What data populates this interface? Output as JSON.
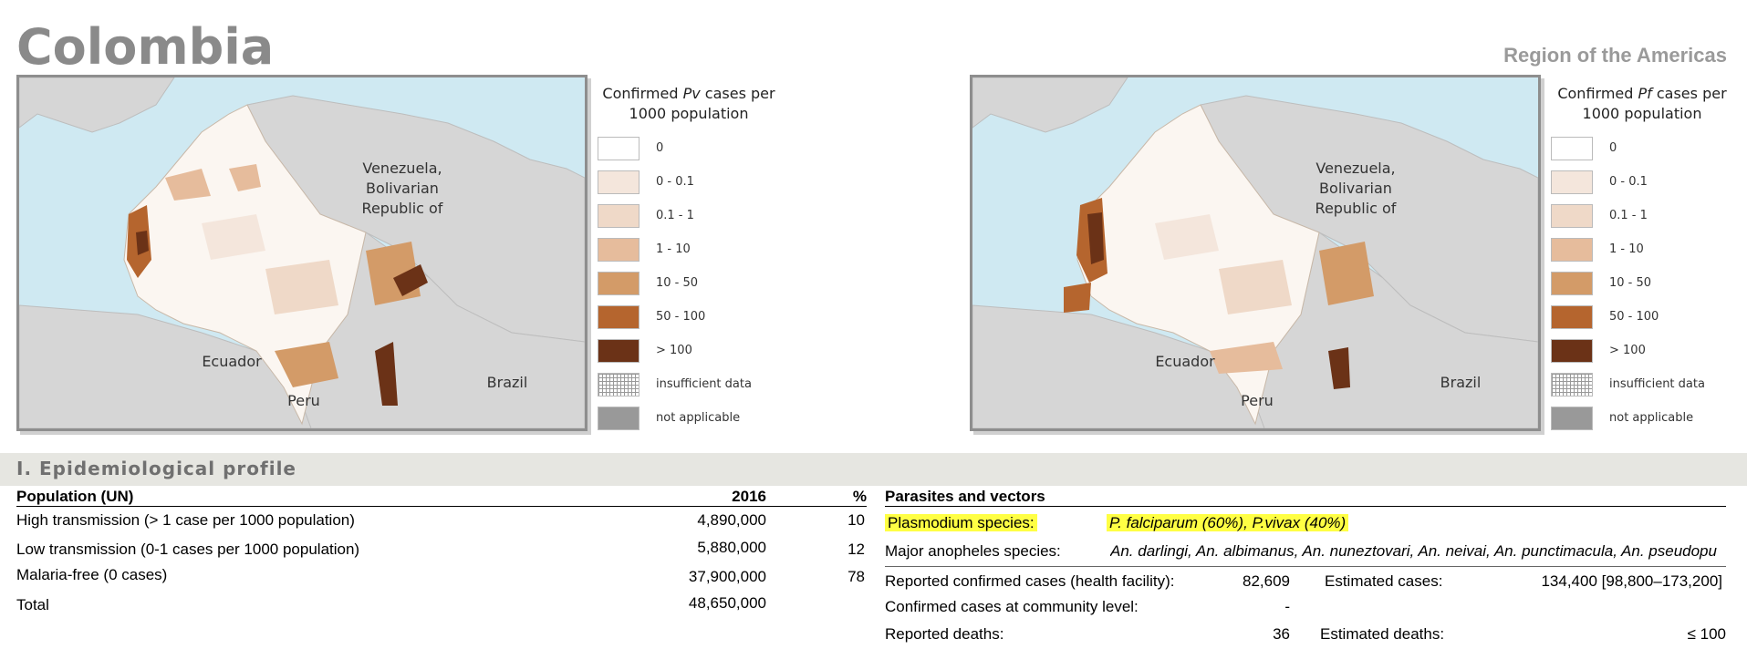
{
  "header": {
    "country": "Colombia",
    "region": "Region of the Americas"
  },
  "maps": [
    {
      "legend_title_pre": "Confirmed ",
      "legend_title_species": "Pv",
      "legend_title_post": " cases per",
      "legend_title_line2": "1000 population",
      "labels": {
        "venezuela": [
          "Venezuela,",
          "Bolivarian",
          "Republic of"
        ],
        "ecuador": "Ecuador",
        "peru": "Peru",
        "brazil": "Brazil"
      }
    },
    {
      "legend_title_pre": "Confirmed ",
      "legend_title_species": "Pf",
      "legend_title_post": " cases per",
      "legend_title_line2": "1000 population",
      "labels": {
        "venezuela": [
          "Venezuela,",
          "Bolivarian",
          "Republic of"
        ],
        "ecuador": "Ecuador",
        "peru": "Peru",
        "brazil": "Brazil"
      }
    }
  ],
  "legend_items": [
    {
      "label": "0",
      "color": "#ffffff"
    },
    {
      "label": "0 - 0.1",
      "color": "#f4e6dc"
    },
    {
      "label": "0.1 - 1",
      "color": "#efd9c8"
    },
    {
      "label": "1 - 10",
      "color": "#e6bc9c"
    },
    {
      "label": "10 - 50",
      "color": "#d39b68"
    },
    {
      "label": "50 - 100",
      "color": "#b5652e"
    },
    {
      "label": "> 100",
      "color": "#6b3217"
    },
    {
      "label": "insufficient data",
      "color": "hatch"
    },
    {
      "label": "not applicable",
      "color": "#999999"
    }
  ],
  "section": {
    "title": "I. Epidemiological profile"
  },
  "population": {
    "header": "Population (UN)",
    "year": "2016",
    "pct": "%",
    "rows": [
      {
        "label": "High transmission (> 1 case per 1000 population)",
        "value": "4,890,000",
        "pct": "10"
      },
      {
        "label": "Low transmission (0-1 cases per 1000 population)",
        "value": "5,880,000",
        "pct": "12"
      },
      {
        "label": "Malaria-free (0 cases)",
        "value": "37,900,000",
        "pct": "78"
      },
      {
        "label": "Total",
        "value": "48,650,000",
        "pct": ""
      }
    ]
  },
  "parasites": {
    "header": "Parasites and vectors",
    "plasmodium_label": "Plasmodium species:",
    "plasmodium_value": "P. falciparum (60%), P.vivax (40%)",
    "anopheles_label": "Major anopheles species:",
    "anopheles_value": "An. darlingi, An. albimanus, An. nuneztovari, An. neivai, An. punctimacula, An. pseudopu",
    "stats": [
      {
        "label": "Reported confirmed cases (health facility):",
        "value": "82,609",
        "est_label": "Estimated cases:",
        "est_value": "134,400 [98,800–173,200]"
      },
      {
        "label": "Confirmed cases at community level:",
        "value": "-",
        "est_label": "",
        "est_value": ""
      },
      {
        "label": "Reported deaths:",
        "value": "36",
        "est_label": "Estimated deaths:",
        "est_value": "≤ 100"
      }
    ]
  }
}
